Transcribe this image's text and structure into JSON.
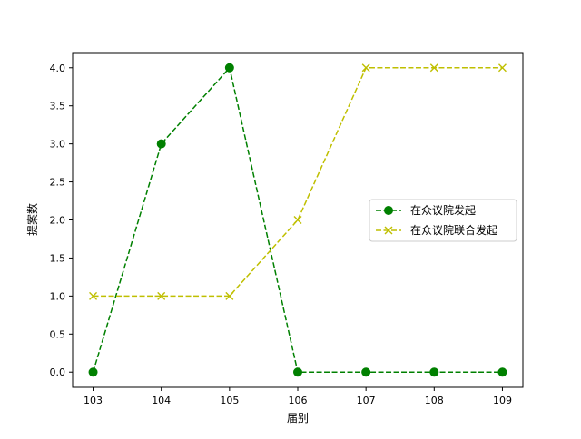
{
  "chart_data": {
    "type": "line",
    "title": "",
    "xlabel": "届别",
    "ylabel": "提案数",
    "categories": [
      "103",
      "104",
      "105",
      "106",
      "107",
      "108",
      "109"
    ],
    "x": [
      103,
      104,
      105,
      106,
      107,
      108,
      109
    ],
    "xlim": [
      102.7,
      109.3
    ],
    "ylim": [
      -0.2,
      4.2
    ],
    "yticks": [
      "0.0",
      "0.5",
      "1.0",
      "1.5",
      "2.0",
      "2.5",
      "3.0",
      "3.5",
      "4.0"
    ],
    "ytick_values": [
      0,
      0.5,
      1,
      1.5,
      2,
      2.5,
      3,
      3.5,
      4
    ],
    "grid": false,
    "legend_position": "right",
    "series": [
      {
        "name": "在众议院发起",
        "values": [
          0,
          3,
          4,
          0,
          0,
          0,
          0
        ],
        "color": "#008000",
        "marker": "circle",
        "linestyle": "dashed"
      },
      {
        "name": "在众议院联合发起",
        "values": [
          1,
          1,
          1,
          2,
          4,
          4,
          4
        ],
        "color": "#bfbf00",
        "marker": "x",
        "linestyle": "dashed"
      }
    ]
  }
}
